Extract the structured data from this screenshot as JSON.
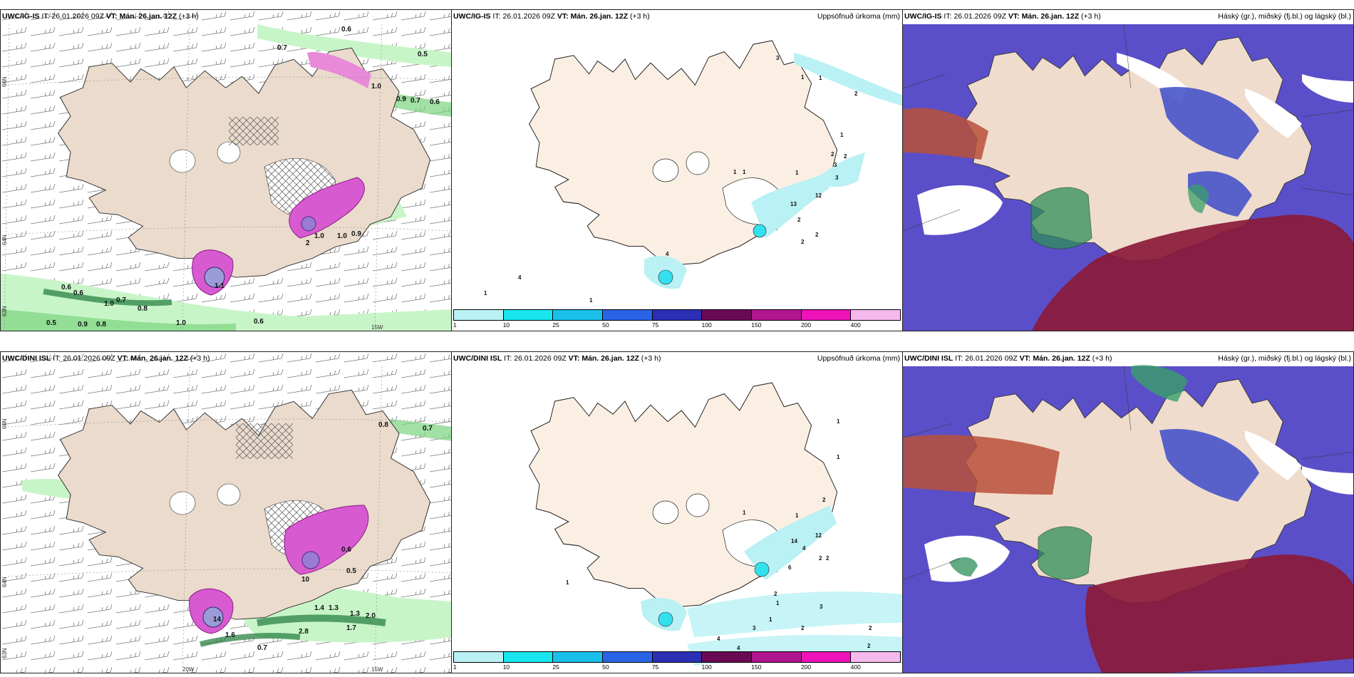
{
  "colors": {
    "land": "#f8ebdd",
    "land_grey": "#eadbcc",
    "precip_light": "#b9f1f4",
    "precip_mid": "#33e0ee",
    "green_light": "#c8f5c8",
    "green_dark": "#1f7a3a",
    "pink": "#d85ad0",
    "cloud_high": "#2f3fbd",
    "cloud_blue": "#5a4fc8",
    "cloud_low": "#8a1a3a",
    "cloud_mid": "#b8503a"
  },
  "panels": [
    {
      "id": "ig-wind",
      "model": "UWC/IG-IS",
      "it_label": "IT:",
      "it_value": "26.01.2026 09Z",
      "vt_label": "VT:",
      "vt_value": "Mán. 26.jan. 12Z",
      "lead": "(+3 h)",
      "title_right": "",
      "lat_labels": [
        "66N",
        "64N",
        "63N"
      ],
      "lon_labels": [
        "15W"
      ],
      "values": [
        "0.6",
        "0.7",
        "0.5",
        "1.0",
        "0.9",
        "0.7",
        "0.6",
        "1.0",
        "0.9",
        "1.0",
        "2",
        "1.1",
        "0.6",
        "0.6",
        "1.0",
        "0.7",
        "0.8",
        "0.5",
        "0.9",
        "0.8",
        "1.0",
        "0.6"
      ]
    },
    {
      "id": "ig-precip",
      "model": "UWC/IG-IS",
      "it_label": "IT:",
      "it_value": "26.01.2026 09Z",
      "vt_label": "VT:",
      "vt_value": "Mán. 26.jan. 12Z",
      "lead": "(+3 h)",
      "title_right": "Uppsöfnuð úrkoma (mm)",
      "values": [
        "3",
        "1",
        "1",
        "2",
        "1",
        "2",
        "2",
        "3",
        "3",
        "1",
        "1",
        "12",
        "13",
        "2",
        "4",
        "1",
        "4",
        "2",
        "2",
        "1",
        "1"
      ]
    },
    {
      "id": "ig-cloud",
      "model": "UWC/IG-IS",
      "it_label": "IT:",
      "it_value": "26.01.2026 09Z",
      "vt_label": "VT:",
      "vt_value": "Mán. 26.jan. 12Z",
      "lead": "(+3 h)",
      "title_right": "Háský (gr.), miðský (fj.bl.) og lágský (bl.)"
    },
    {
      "id": "dini-wind",
      "model": "UWC/DINI ISL",
      "it_label": "IT:",
      "it_value": "26.01.2026 09Z",
      "vt_label": "VT:",
      "vt_value": "Mán. 26.jan. 12Z",
      "lead": "(+3 h)",
      "title_right": "",
      "lat_labels": [
        "66N",
        "64N",
        "63N"
      ],
      "lon_labels": [
        "20W",
        "15W"
      ],
      "values": [
        "0.8",
        "0.7",
        "0.5",
        "0.6",
        "10",
        "14",
        "1.4",
        "1.3",
        "1.3",
        "2.0",
        "2.8",
        "1.7",
        "1.6",
        "0.7"
      ]
    },
    {
      "id": "dini-precip",
      "model": "UWC/DINI ISL",
      "it_label": "IT:",
      "it_value": "26.01.2026 09Z",
      "vt_label": "VT:",
      "vt_value": "Mán. 26.jan. 12Z",
      "lead": "(+3 h)",
      "title_right": "Uppsöfnuð úrkoma (mm)",
      "values": [
        "1",
        "1",
        "1",
        "2",
        "1",
        "12",
        "14",
        "4",
        "6",
        "2",
        "2",
        "1",
        "2",
        "3",
        "3",
        "2",
        "2",
        "1",
        "4",
        "4",
        "2",
        "1"
      ]
    },
    {
      "id": "dini-cloud",
      "model": "UWC/DINI ISL",
      "it_label": "IT:",
      "it_value": "26.01.2026 09Z",
      "vt_label": "VT:",
      "vt_value": "Mán. 26.jan. 12Z",
      "lead": "(+3 h)",
      "title_right": "Háský (gr.), miðský (fj.bl.) og lágský (bl.)"
    }
  ],
  "precip_legend": {
    "ticks": [
      "1",
      "10",
      "25",
      "50",
      "75",
      "100",
      "150",
      "200",
      "400"
    ],
    "colors": [
      "#b9f1f4",
      "#18e6ee",
      "#1ac0ea",
      "#2a64e6",
      "#2a2fb4",
      "#6a0a55",
      "#b0168e",
      "#ee12b8",
      "#f6b9ee"
    ]
  }
}
